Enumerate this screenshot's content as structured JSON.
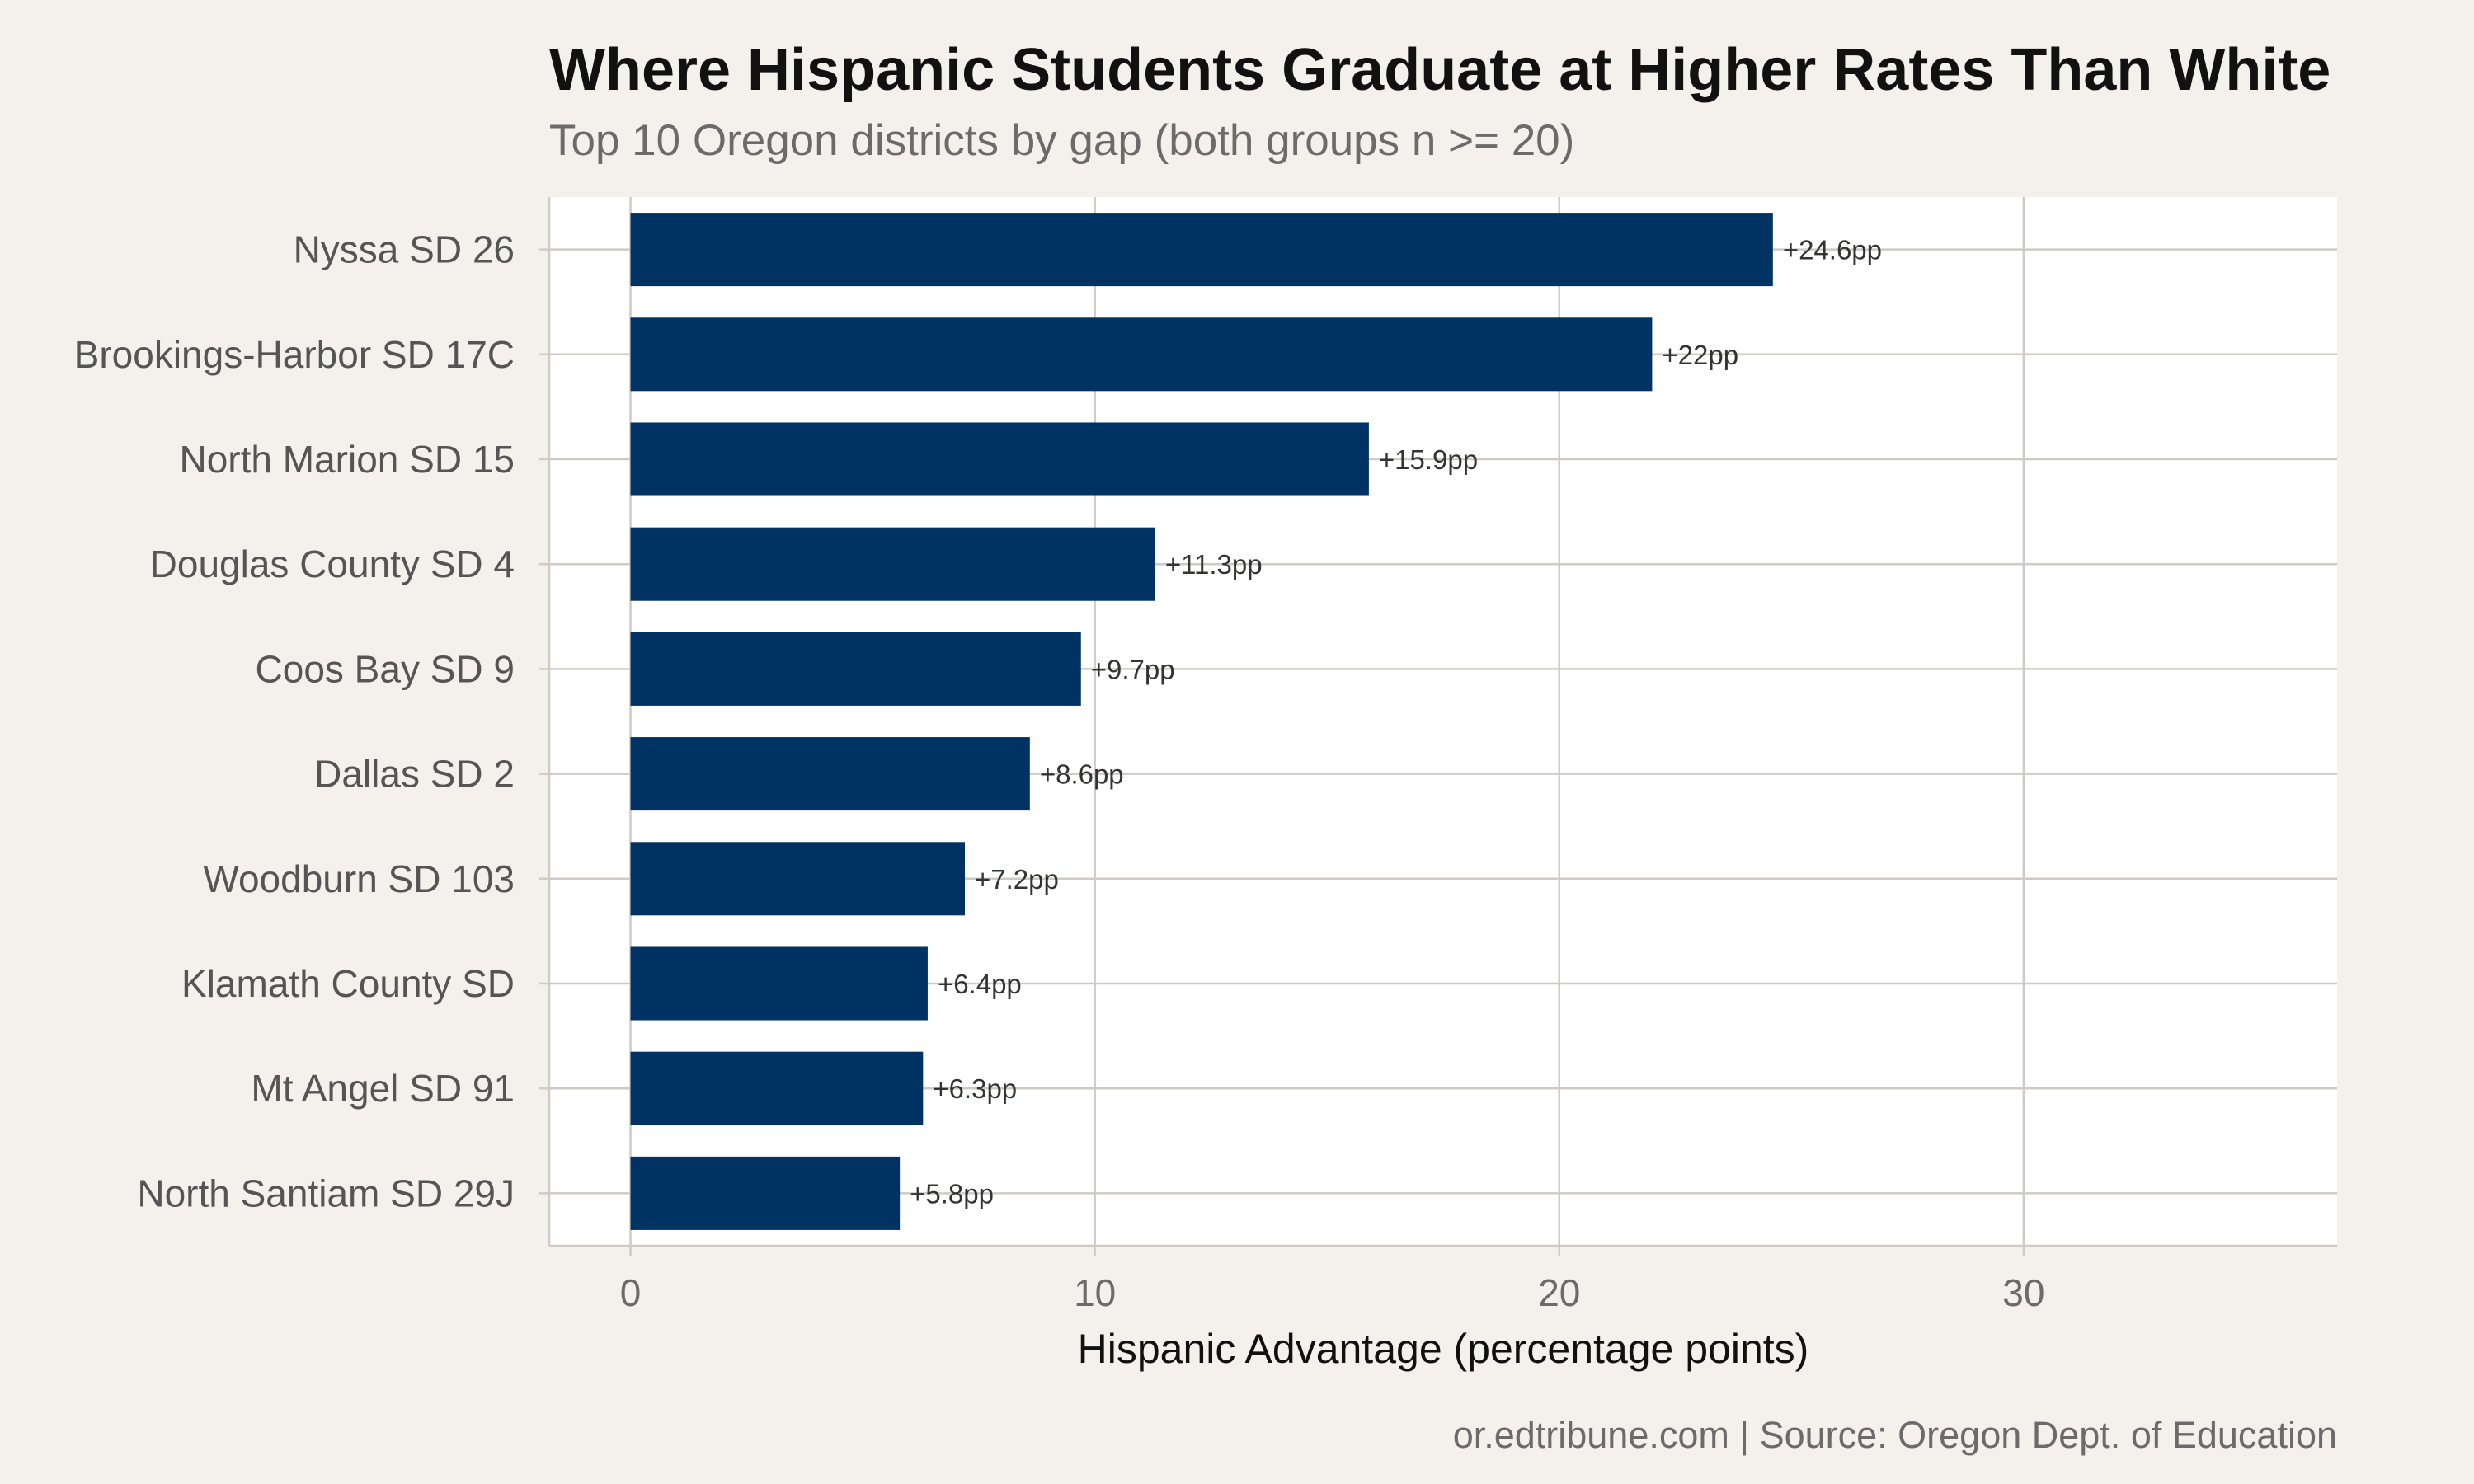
{
  "title": "Where Hispanic Students Graduate at Higher Rates Than White",
  "subtitle": "Top 10 Oregon districts by gap (both groups n >= 20)",
  "caption": "or.edtribune.com | Source: Oregon Dept. of Education",
  "colors": {
    "bar": "#003363",
    "panel_bg": "#ffffff",
    "page_bg": "#f4f1ec",
    "grid": "#cfcbc4"
  },
  "chart_data": {
    "type": "bar",
    "orientation": "horizontal",
    "categories": [
      "Nyssa SD 26",
      "Brookings-Harbor SD 17C",
      "North Marion SD 15",
      "Douglas County SD 4",
      "Coos Bay SD 9",
      "Dallas SD 2",
      "Woodburn SD 103",
      "Klamath County SD",
      "Mt Angel SD 91",
      "North Santiam SD 29J"
    ],
    "values": [
      24.6,
      22,
      15.9,
      11.3,
      9.7,
      8.6,
      7.2,
      6.4,
      6.3,
      5.8
    ],
    "data_labels": [
      "+24.6pp",
      "+22pp",
      "+15.9pp",
      "+11.3pp",
      "+9.7pp",
      "+8.6pp",
      "+7.2pp",
      "+6.4pp",
      "+6.3pp",
      "+5.8pp"
    ],
    "xlabel": "Hispanic Advantage (percentage points)",
    "ylabel": "",
    "xlim": [
      -1.75,
      36.75
    ],
    "xticks": [
      0,
      10,
      20,
      30
    ],
    "xtick_labels": [
      "0",
      "10",
      "20",
      "30"
    ],
    "grid": true,
    "legend": "none"
  }
}
